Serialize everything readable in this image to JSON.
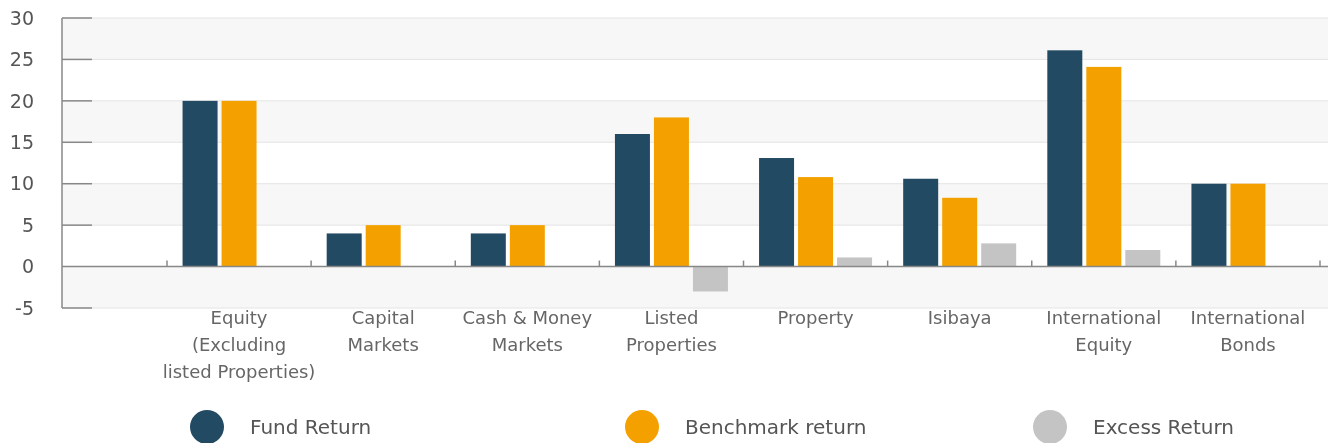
{
  "chart_data": {
    "type": "bar",
    "categories": [
      "Equity\n(Excluding\nlisted Properties)",
      "Capital\nMarkets",
      "Cash & Money\nMarkets",
      "Listed\nProperties",
      "Property",
      "Isibaya",
      "International\nEquity",
      "International\nBonds"
    ],
    "series": [
      {
        "name": "Fund Return",
        "color": "#234a63",
        "values": [
          20,
          4,
          4,
          16,
          13.1,
          10.6,
          26.1,
          10
        ]
      },
      {
        "name": "Benchmark return",
        "color": "#f4a100",
        "values": [
          20,
          5,
          5,
          18,
          10.8,
          8.3,
          24.1,
          10
        ]
      },
      {
        "name": "Excess Return",
        "color": "#c4c4c4",
        "values": [
          0,
          0,
          0,
          -3,
          1.1,
          2.8,
          2,
          0
        ]
      }
    ],
    "ylim": [
      -5,
      30
    ],
    "yticks": [
      -5,
      0,
      5,
      10,
      15,
      20,
      25,
      30
    ],
    "grid": "y",
    "legend": "bottom"
  }
}
